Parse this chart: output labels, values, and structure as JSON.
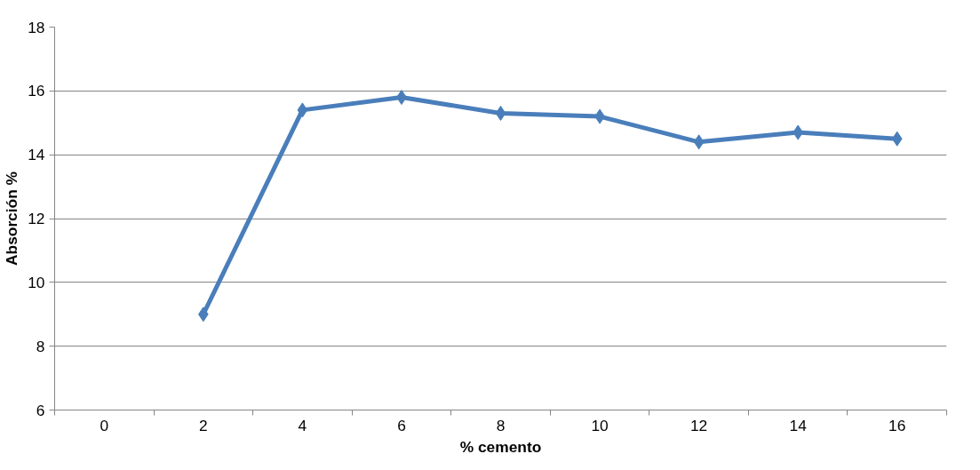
{
  "chart_data": {
    "type": "line",
    "xlabel": "% cemento",
    "ylabel": "Absorción %",
    "categories": [
      "0",
      "2",
      "4",
      "6",
      "8",
      "10",
      "12",
      "14",
      "16"
    ],
    "series": [
      {
        "color": "#4a7ebb",
        "values": [
          null,
          9.0,
          15.4,
          15.8,
          15.3,
          15.2,
          14.4,
          14.7,
          14.5
        ]
      }
    ],
    "ylim": [
      6,
      18
    ],
    "yticks": [
      6,
      8,
      10,
      12,
      14,
      16,
      18
    ],
    "grid": "y",
    "marker": "diamond",
    "line_style": "solid"
  }
}
